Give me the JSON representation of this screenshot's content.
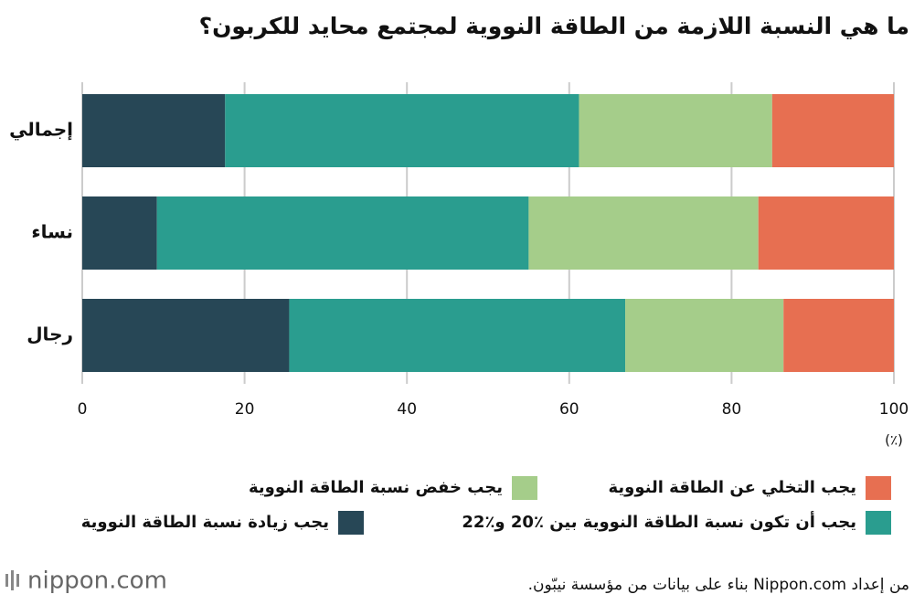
{
  "chart_data": {
    "type": "stacked-barh",
    "title": "ما هي النسبة اللازمة من الطاقة النووية لمجتمع محايد للكربون؟",
    "categories": [
      "إجمالي",
      "نساء",
      "رجال"
    ],
    "series": [
      {
        "name": "يجب زيادة نسبة الطاقة النووية",
        "color": "#274756",
        "values": [
          17.6,
          9.2,
          25.5
        ]
      },
      {
        "name": "يجب أن تكون نسبة الطاقة النووية بين ٪20 و٪22",
        "color": "#2a9d8f",
        "values": [
          43.6,
          45.8,
          41.4
        ]
      },
      {
        "name": "يجب خفض نسبة الطاقة النووية",
        "color": "#a5cd8a",
        "values": [
          23.8,
          28.3,
          19.5
        ]
      },
      {
        "name": "يجب التخلي عن الطاقة النووية",
        "color": "#e76f51",
        "values": [
          15.0,
          16.7,
          13.6
        ]
      }
    ],
    "xlim": [
      0,
      100
    ],
    "xticks": [
      0,
      20,
      40,
      60,
      80,
      100
    ],
    "xlabel": "(٪)",
    "grid": true,
    "source": "من إعداد Nippon.com بناء على بيانات من مؤسسة نيبّون.",
    "logo": "nippon.com"
  }
}
